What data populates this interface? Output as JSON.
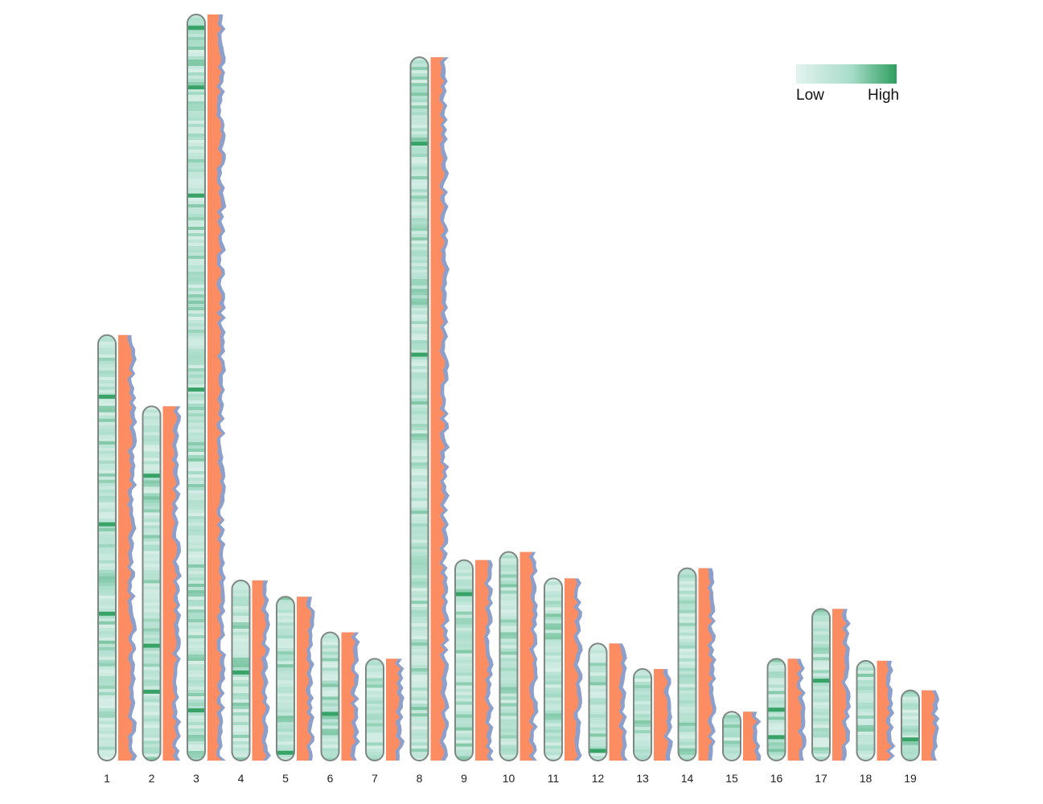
{
  "chart_data": {
    "type": "heatmap",
    "title": "",
    "xlabel": "",
    "ylabel": "",
    "colors": {
      "low": "#e3f3ef",
      "mid": "#a8dcc9",
      "high": "#2e9e5e",
      "outline": "#7f8783",
      "density_front": "#fc8d62",
      "density_back": "#8da0cb"
    },
    "legend": {
      "low_label": "Low",
      "high_label": "High",
      "position": "top-right"
    },
    "chromosomes": [
      {
        "label": "1",
        "length": 41.8,
        "highlights": [
          0.14,
          0.44,
          0.65
        ]
      },
      {
        "label": "2",
        "length": 34.8,
        "highlights": [
          0.19,
          0.67,
          0.8
        ]
      },
      {
        "label": "3",
        "length": 73.3,
        "highlights": [
          0.015,
          0.095,
          0.24,
          0.5,
          0.93
        ]
      },
      {
        "label": "4",
        "length": 17.7,
        "highlights": [
          0.5
        ]
      },
      {
        "label": "5",
        "length": 16.1,
        "highlights": [
          0.94
        ]
      },
      {
        "label": "6",
        "length": 12.6,
        "highlights": [
          0.62
        ]
      },
      {
        "label": "7",
        "length": 10.0,
        "highlights": []
      },
      {
        "label": "8",
        "length": 69.1,
        "highlights": [
          0.12,
          0.42
        ]
      },
      {
        "label": "9",
        "length": 19.7,
        "highlights": [
          0.16
        ]
      },
      {
        "label": "10",
        "length": 20.5,
        "highlights": []
      },
      {
        "label": "11",
        "length": 17.9,
        "highlights": []
      },
      {
        "label": "12",
        "length": 11.5,
        "highlights": [
          0.9
        ]
      },
      {
        "label": "13",
        "length": 9.0,
        "highlights": []
      },
      {
        "label": "14",
        "length": 18.9,
        "highlights": []
      },
      {
        "label": "15",
        "length": 4.8,
        "highlights": []
      },
      {
        "label": "16",
        "length": 10.0,
        "highlights": [
          0.48,
          0.75
        ]
      },
      {
        "label": "17",
        "length": 14.9,
        "highlights": [
          0.46
        ]
      },
      {
        "label": "18",
        "length": 9.8,
        "highlights": []
      },
      {
        "label": "19",
        "length": 6.9,
        "highlights": [
          0.67
        ]
      }
    ]
  }
}
